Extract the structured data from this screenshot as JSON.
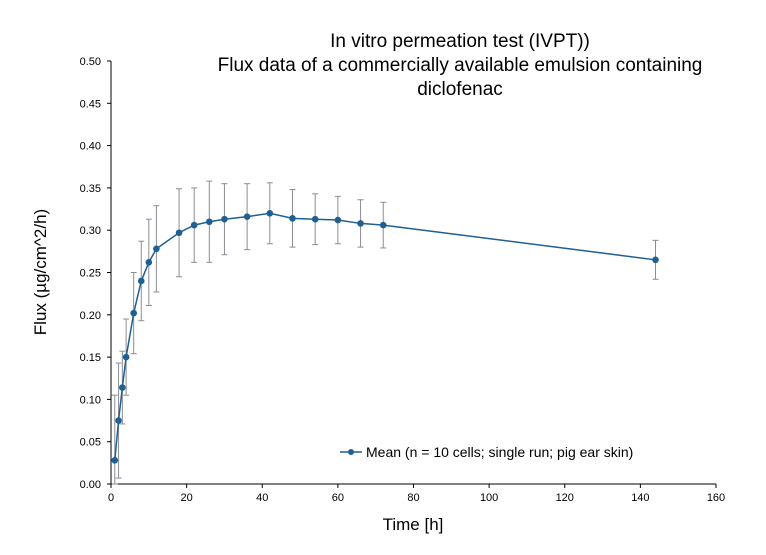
{
  "chart_data": {
    "type": "line",
    "title_lines": [
      "In vitro permeation test (IVPT))",
      "Flux data of a commercially available emulsion containing",
      "diclofenac"
    ],
    "xlabel": "Time [h]",
    "ylabel": "Flux (µg/cm^2/h)",
    "xlim": [
      0,
      160
    ],
    "ylim": [
      0,
      0.5
    ],
    "xticks": [
      0,
      20,
      40,
      60,
      80,
      100,
      120,
      140,
      160
    ],
    "yticks": [
      "0.00",
      "0.05",
      "0.10",
      "0.15",
      "0.20",
      "0.25",
      "0.30",
      "0.35",
      "0.40",
      "0.45",
      "0.50"
    ],
    "grid": false,
    "legend_position": "bottom-right",
    "series": [
      {
        "name": "Mean (n = 10 cells; single run; pig ear skin)",
        "color": "#1f5f91",
        "x": [
          1,
          2,
          3,
          4,
          6,
          8,
          10,
          12,
          18,
          22,
          26,
          30,
          36,
          42,
          48,
          54,
          60,
          66,
          72,
          144
        ],
        "y": [
          0.028,
          0.075,
          0.114,
          0.15,
          0.202,
          0.24,
          0.262,
          0.278,
          0.297,
          0.306,
          0.31,
          0.313,
          0.316,
          0.32,
          0.314,
          0.313,
          0.312,
          0.308,
          0.306,
          0.265
        ],
        "error": [
          0.077,
          0.068,
          0.043,
          0.045,
          0.048,
          0.047,
          0.051,
          0.051,
          0.052,
          0.044,
          0.048,
          0.042,
          0.039,
          0.036,
          0.034,
          0.03,
          0.028,
          0.028,
          0.027,
          0.023
        ]
      }
    ]
  }
}
